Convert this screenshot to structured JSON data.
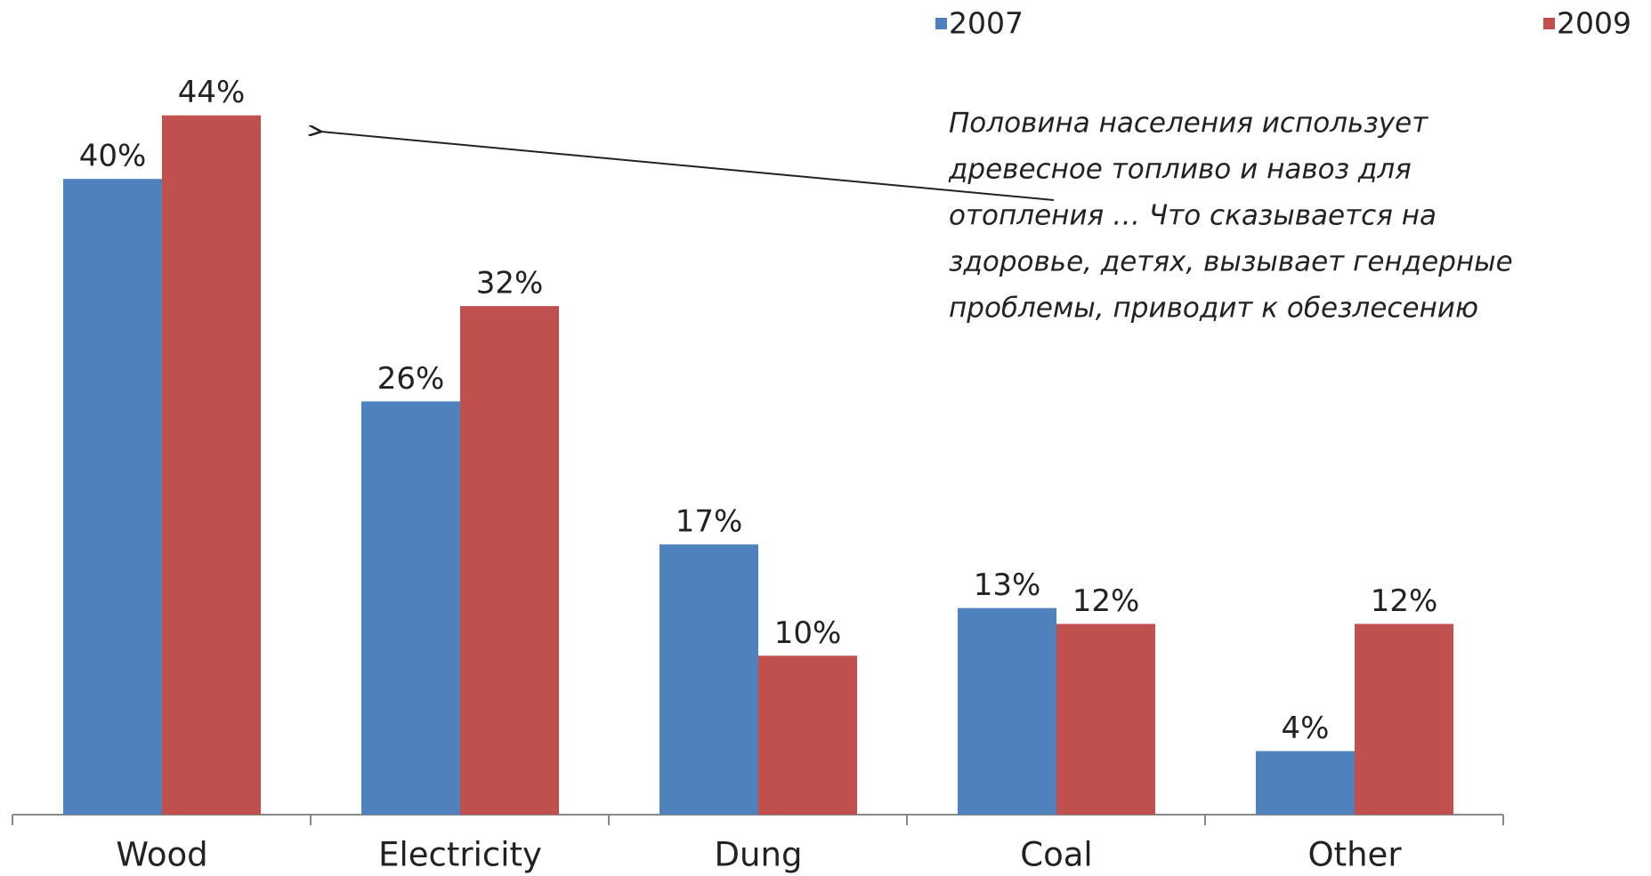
{
  "chart_data": {
    "type": "bar",
    "categories": [
      "Wood",
      "Electricity",
      "Dung",
      "Coal",
      "Other"
    ],
    "series": [
      {
        "name": "2007",
        "color": "#4f81bd",
        "values": [
          40,
          26,
          17,
          13,
          4
        ],
        "value_labels": [
          "40%",
          "26%",
          "17%",
          "13%",
          "4%"
        ]
      },
      {
        "name": "2009",
        "color": "#c0504d",
        "values": [
          44,
          32,
          10,
          12,
          12
        ],
        "value_labels": [
          "44%",
          "32%",
          "10%",
          "12%",
          "12%"
        ]
      }
    ],
    "annotation": [
      "Половина населения использует",
      "древесное топливо и навоз для",
      "отопления … Что сказывается на",
      "здоровье, детях, вызывает гендерные",
      "проблемы, приводит к обезлесению"
    ]
  }
}
